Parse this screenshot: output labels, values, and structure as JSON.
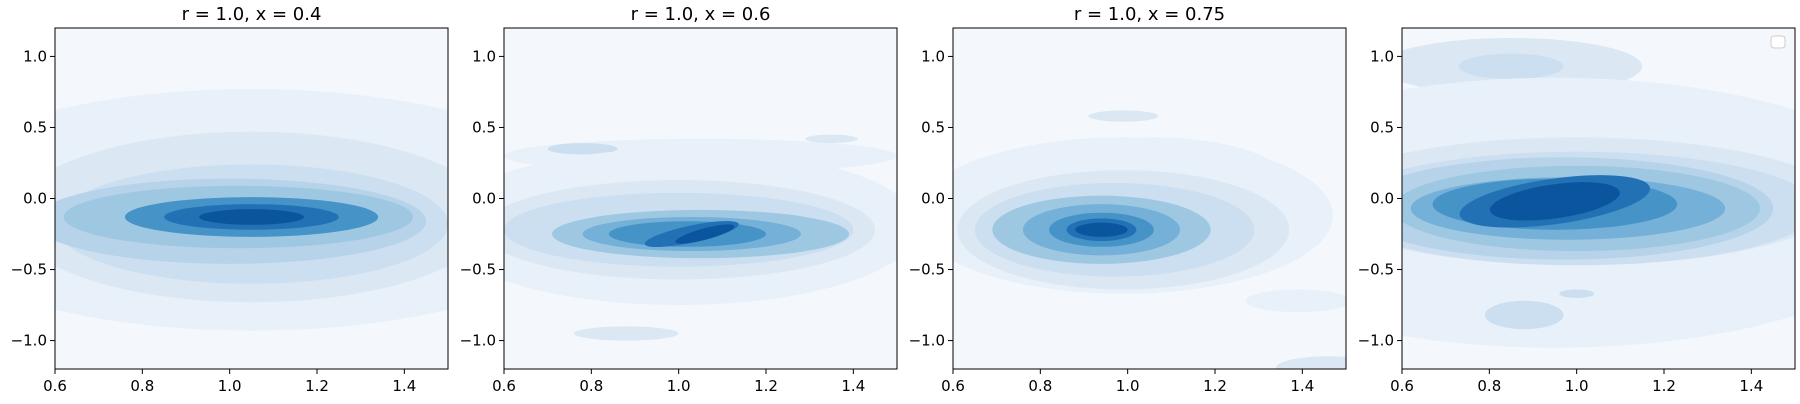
{
  "chart_data": [
    {
      "type": "kde_contour",
      "title": "r = 1.0, x = 0.4",
      "xlim": [
        0.6,
        1.5
      ],
      "ylim": [
        -1.2,
        1.2
      ],
      "xticks": [
        "0.6",
        "0.8",
        "1.0",
        "1.2",
        "1.4"
      ],
      "yticks": [
        "1.0",
        "0.5",
        "0.0",
        "−0.5",
        "−1.0"
      ],
      "peak": {
        "x": 1.05,
        "y": -0.13
      },
      "colormap": "Blues",
      "legend": false
    },
    {
      "type": "kde_contour",
      "title": "r = 1.0, x = 0.6",
      "xlim": [
        0.6,
        1.5
      ],
      "ylim": [
        -1.2,
        1.2
      ],
      "xticks": [
        "0.6",
        "0.8",
        "1.0",
        "1.2",
        "1.4"
      ],
      "yticks": [
        "1.0",
        "0.5",
        "0.0",
        "−0.5",
        "−1.0"
      ],
      "peak": {
        "x": 1.0,
        "y": -0.2
      },
      "colormap": "Blues",
      "legend": false
    },
    {
      "type": "kde_contour",
      "title": "r = 1.0, x = 0.75",
      "xlim": [
        0.6,
        1.5
      ],
      "ylim": [
        -1.2,
        1.2
      ],
      "xticks": [
        "0.6",
        "0.8",
        "1.0",
        "1.2",
        "1.4"
      ],
      "yticks": [
        "1.0",
        "0.5",
        "0.0",
        "−0.5",
        "−1.0"
      ],
      "peak": {
        "x": 0.94,
        "y": -0.22
      },
      "colormap": "Blues",
      "legend": false
    },
    {
      "type": "kde_contour",
      "title": "",
      "xlim": [
        0.6,
        1.5
      ],
      "ylim": [
        -1.2,
        1.2
      ],
      "xticks": [
        "0.6",
        "0.8",
        "1.0",
        "1.2",
        "1.4"
      ],
      "yticks": [
        "1.0",
        "0.5",
        "0.0",
        "−0.5",
        "−1.0"
      ],
      "peak": {
        "x": 0.95,
        "y": -0.02
      },
      "colormap": "Blues",
      "legend": "empty, top-right"
    }
  ]
}
